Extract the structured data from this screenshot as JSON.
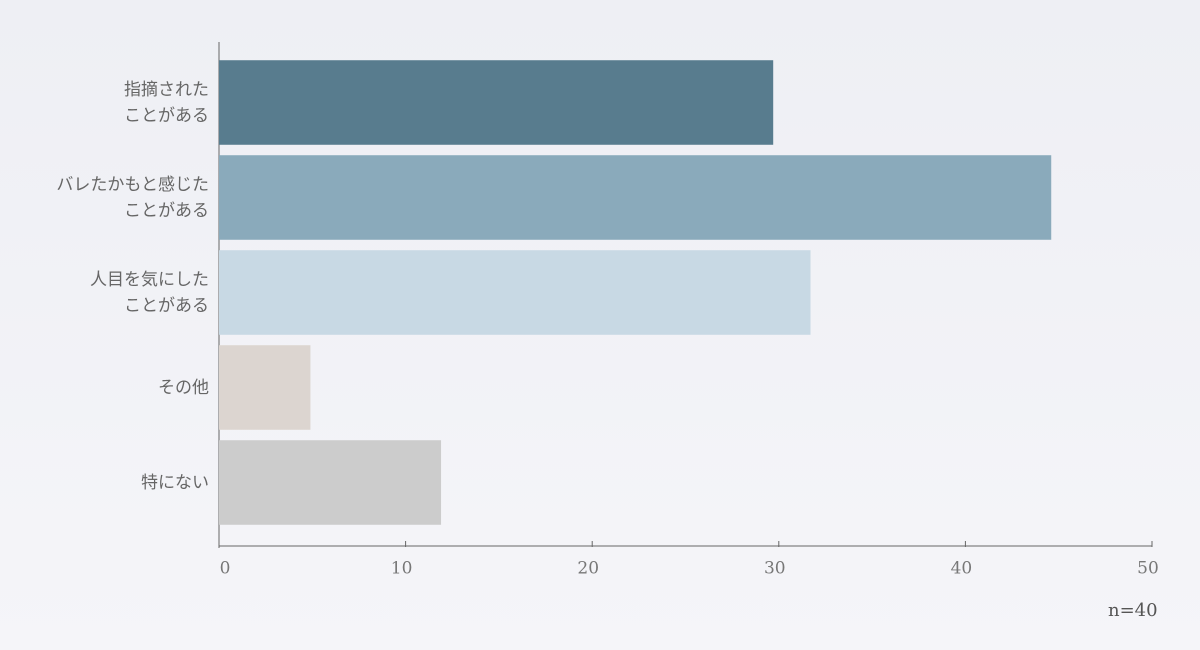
{
  "chart_data": {
    "type": "bar",
    "orientation": "horizontal",
    "categories": [
      "指摘された\nことがある",
      "バレたかもと感じた\nことがある",
      "人目を気にした\nことがある",
      "その他",
      "特にない"
    ],
    "values": [
      29.7,
      44.6,
      31.7,
      4.9,
      11.9
    ],
    "colors": [
      "#587c8e",
      "#8aaabb",
      "#c8d9e4",
      "#dcd5d0",
      "#cccccc"
    ],
    "xlim": [
      0,
      50
    ],
    "xticks": [
      0,
      10,
      20,
      30,
      40,
      50
    ],
    "note": "n=40"
  }
}
